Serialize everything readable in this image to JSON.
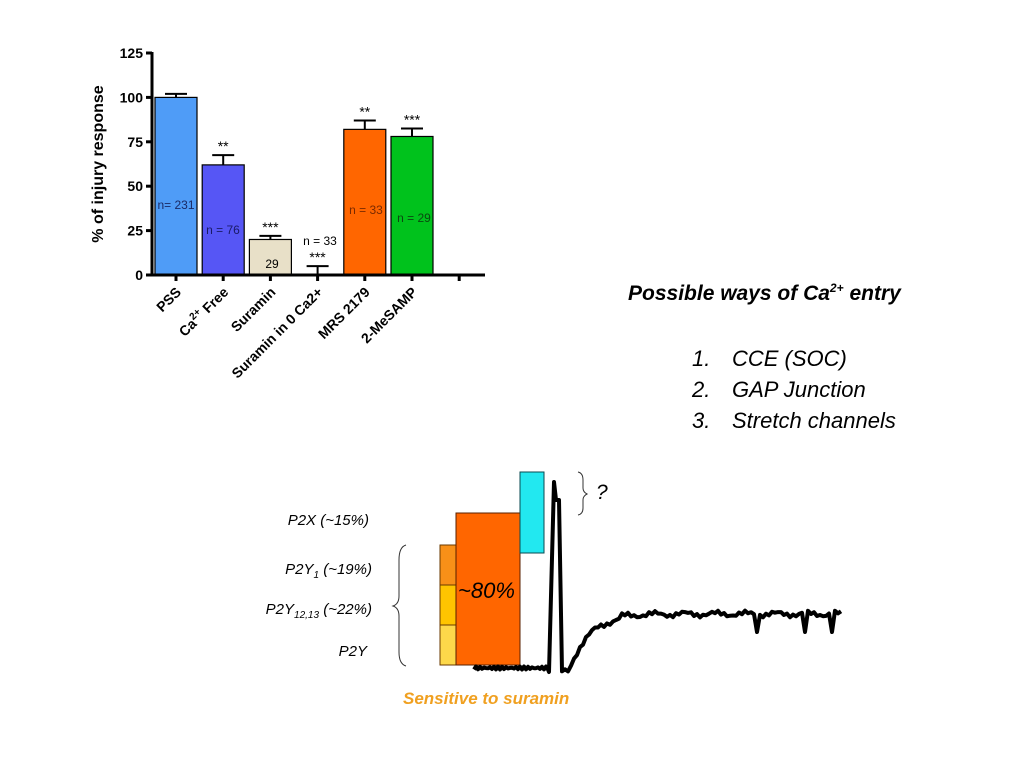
{
  "chart_data": {
    "type": "bar",
    "title": "",
    "xlabel": "",
    "ylabel": "% of injury response",
    "ylim": [
      0,
      125
    ],
    "yticks": [
      0,
      25,
      50,
      75,
      100,
      125
    ],
    "grid": false,
    "categories": [
      "PSS",
      "Ca2+ Free",
      "Suramin",
      "Suramin in 0 Ca2+",
      "MRS 2179",
      "2-MeSAMP"
    ],
    "category_labels": [
      {
        "main": "PSS",
        "sup": ""
      },
      {
        "main": "Ca",
        "sup": "2+",
        "rest": " Free"
      },
      {
        "main": "Suramin",
        "sup": ""
      },
      {
        "main": "Suramin in 0 Ca2+",
        "sup": ""
      },
      {
        "main": "MRS 2179",
        "sup": ""
      },
      {
        "main": "2-MeSAMP",
        "sup": ""
      }
    ],
    "values": [
      100,
      62,
      20,
      0,
      82,
      78
    ],
    "error_upper": [
      102,
      67.5,
      22,
      5,
      87,
      82.5
    ],
    "colors": [
      "#4f9cf7",
      "#5656f5",
      "#e8e0c8",
      "#ffffff",
      "#ff6600",
      "#00c21c"
    ],
    "n_labels": [
      "n= 231",
      "n = 76",
      "29",
      "n = 33",
      "n = 33",
      "n = 29"
    ],
    "n_label_colors": [
      "#1a2a66",
      "#1a1a66",
      "#000000",
      "#000000",
      "#7a2a00",
      "#0a4a10"
    ],
    "significance": [
      "",
      "**",
      "***",
      "***",
      "**",
      "***"
    ],
    "extra_tick": true
  },
  "ca_entry": {
    "title_prefix": "Possible ways of Ca",
    "title_sup": "2+",
    "title_suffix": " entry",
    "items": [
      {
        "num": "1.",
        "text": "CCE (SOC)"
      },
      {
        "num": "2.",
        "text": "GAP Junction"
      },
      {
        "num": "3.",
        "text": "Stretch channels"
      }
    ]
  },
  "diagram": {
    "receptors": [
      {
        "main": "P2X",
        "sub": "",
        "pct": " (~15%)"
      },
      {
        "main": "P2Y",
        "sub": "1",
        "pct": " (~19%)"
      },
      {
        "main": "P2Y",
        "sub": "12,13",
        "pct": " (~22%)"
      },
      {
        "main": "P2Y",
        "sub": "",
        "pct": ""
      }
    ],
    "big_block_label": "~80%",
    "question_mark": "?",
    "sensitive_label": "Sensitive to suramin",
    "colors": {
      "big_block": "#ff6600",
      "p2y1": "#f89018",
      "p2y12": "#ffc400",
      "p2y": "#fdd84a",
      "cyan": "#22e8f0",
      "sensitive_text": "#f0a020"
    }
  }
}
